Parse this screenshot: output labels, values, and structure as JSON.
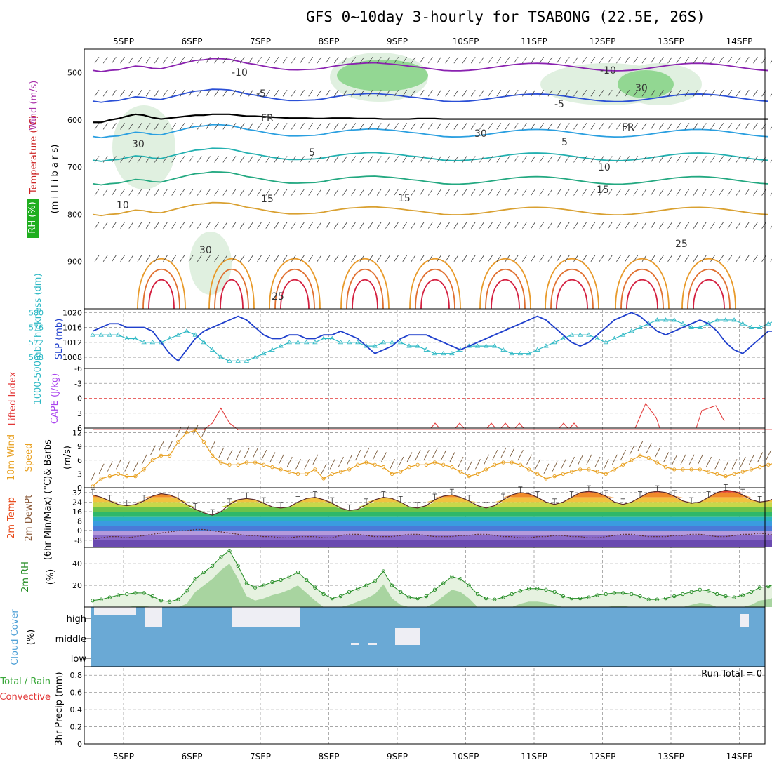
{
  "title": "GFS 0~10day 3-hourly for TSABONG (22.5E, 26S)",
  "chart_data": {
    "type": "multi-panel meteogram",
    "dates": [
      "5SEP",
      "6SEP",
      "7SEP",
      "8SEP",
      "9SEP",
      "10SEP",
      "11SEP",
      "12SEP",
      "13SEP",
      "14SEP"
    ],
    "steps_per_day": 8,
    "grid": true,
    "panels": [
      {
        "id": "upper-air",
        "type": "contour",
        "ylabels": [
          "Wind (m/s)",
          "Temperature (°C)",
          "RH (%)",
          "(m i l l i b a r s)"
        ],
        "yticks": [
          500,
          600,
          700,
          800,
          900
        ],
        "ylim": [
          1000,
          450
        ],
        "contour_labels": [
          "-10",
          "-10",
          "-5",
          "-5",
          "FR",
          "FR",
          "5",
          "5",
          "10",
          "10",
          "15",
          "15",
          "15",
          "25",
          "25",
          "30",
          "30",
          "30",
          "30"
        ],
        "freezing_level_mb": [
          605,
          605,
          600,
          597,
          592,
          588,
          590,
          595,
          598,
          596,
          594,
          592,
          590,
          590,
          588,
          588,
          588,
          590,
          592,
          592,
          593,
          594,
          595,
          596,
          596,
          596,
          597,
          597,
          596,
          596,
          596,
          597,
          597,
          597,
          598,
          598,
          598,
          598,
          597,
          597,
          597,
          598,
          598,
          598,
          598,
          598,
          598,
          598,
          598,
          598,
          598,
          598,
          598,
          598,
          598,
          598,
          598,
          598,
          598,
          598,
          598,
          598,
          598,
          598,
          598,
          598,
          598,
          598,
          598,
          598,
          598,
          598,
          598,
          598,
          598,
          598,
          598,
          598,
          598,
          598
        ]
      },
      {
        "id": "slp-thickness",
        "type": "line",
        "ylabels": [
          "SLP (mb)",
          "1000-500mb Thickness (dm)"
        ],
        "yticks_left": [
          568,
          572,
          576,
          580
        ],
        "yticks_right": [
          1008,
          1012,
          1016,
          1020
        ],
        "ylim_right": [
          1005,
          1021
        ],
        "series": [
          {
            "name": "SLP (mb)",
            "axis": "right",
            "values": [
              1015,
              1016,
              1017,
              1017,
              1016,
              1016,
              1016,
              1015,
              1012,
              1009,
              1007,
              1010,
              1013,
              1015,
              1016,
              1017,
              1018,
              1019,
              1018,
              1016,
              1014,
              1013,
              1013,
              1014,
              1014,
              1013,
              1013,
              1014,
              1014,
              1015,
              1014,
              1013,
              1011,
              1009,
              1010,
              1011,
              1013,
              1014,
              1014,
              1014,
              1013,
              1012,
              1011,
              1010,
              1011,
              1012,
              1013,
              1014,
              1015,
              1016,
              1017,
              1018,
              1019,
              1018,
              1016,
              1014,
              1012,
              1011,
              1012,
              1014,
              1016,
              1018,
              1019,
              1020,
              1019,
              1017,
              1015,
              1014,
              1015,
              1016,
              1017,
              1018,
              1017,
              1015,
              1012,
              1010,
              1009,
              1011,
              1013,
              1015,
              1015,
              1014,
              1013,
              1013,
              1015,
              1016,
              1016,
              1015,
              1013,
              1011,
              1010,
              1012,
              1014,
              1016,
              1016,
              1017
            ]
          },
          {
            "name": "1000-500mb Thickness (dm)",
            "axis": "right",
            "values": [
              1014,
              1014,
              1014,
              1014,
              1013,
              1013,
              1012,
              1012,
              1012,
              1013,
              1014,
              1015,
              1014,
              1012,
              1010,
              1008,
              1007,
              1007,
              1007,
              1008,
              1009,
              1010,
              1011,
              1012,
              1012,
              1012,
              1012,
              1013,
              1013,
              1012,
              1012,
              1012,
              1011,
              1011,
              1012,
              1012,
              1012,
              1011,
              1011,
              1010,
              1009,
              1009,
              1009,
              1010,
              1011,
              1011,
              1011,
              1011,
              1010,
              1009,
              1009,
              1009,
              1010,
              1011,
              1012,
              1013,
              1014,
              1014,
              1014,
              1013,
              1012,
              1013,
              1014,
              1015,
              1016,
              1017,
              1018,
              1018,
              1018,
              1017,
              1016,
              1016,
              1017,
              1018,
              1018,
              1018,
              1017,
              1016,
              1016,
              1017,
              1018,
              1018,
              1017,
              1016,
              1015,
              1015,
              1016,
              1017,
              1017,
              1016,
              1015,
              1015,
              1016,
              1016,
              1015,
              1015
            ]
          }
        ]
      },
      {
        "id": "cape-li",
        "type": "line",
        "ylabels": [
          "Lifted Index",
          "CAPE (J/kg)"
        ],
        "yticks": [
          6,
          3,
          0,
          -3,
          -6
        ],
        "ylim": [
          6,
          -6
        ],
        "series": [
          {
            "name": "Lifted Index",
            "values": [
              7,
              7,
              7,
              7,
              7,
              7,
              7,
              7,
              7,
              7,
              7,
              7,
              7,
              7,
              5,
              2,
              5,
              7,
              7,
              7,
              7,
              7,
              7,
              7,
              7,
              7,
              7,
              7,
              7,
              7,
              7,
              7,
              7,
              7,
              7,
              7,
              7,
              7,
              7,
              7,
              7,
              7,
              7,
              7,
              7,
              7,
              7,
              7,
              7,
              7,
              7,
              7,
              7,
              7,
              7,
              7,
              7,
              7,
              7,
              7,
              7,
              7,
              7,
              7,
              7,
              7,
              7,
              7,
              7,
              7,
              7,
              7,
              7,
              7,
              7,
              7,
              7,
              7,
              7,
              7,
              7,
              7,
              7,
              7,
              7,
              7,
              7,
              7,
              7,
              7,
              7,
              7,
              7,
              7,
              7,
              7
            ]
          }
        ]
      },
      {
        "id": "wind10m",
        "type": "line",
        "ylabels": [
          "10m Wind",
          "Speed",
          "& Barbs",
          "(m/s)"
        ],
        "yticks": [
          0,
          3,
          6,
          9,
          12
        ],
        "ylim": [
          0,
          13
        ],
        "series": [
          {
            "name": "10m Wind Speed (m/s)",
            "values": [
              0.3,
              2,
              2.5,
              3,
              2.5,
              2.5,
              4,
              6,
              7,
              7,
              10,
              12,
              12.5,
              10,
              7,
              5.5,
              5,
              5,
              5.5,
              5.5,
              5,
              4.5,
              4,
              3.5,
              3,
              3,
              4,
              2,
              3,
              3.5,
              4,
              5,
              5.5,
              5,
              4.5,
              3,
              3.5,
              4.5,
              5,
              5,
              5.5,
              5,
              4.5,
              3.5,
              2.5,
              3,
              4,
              5,
              5.5,
              5.5,
              5,
              4,
              3,
              2,
              2.5,
              3,
              3.5,
              4,
              4,
              3.5,
              3,
              4,
              5,
              6,
              7,
              6.5,
              5.5,
              4.5,
              4,
              4,
              4,
              4,
              3.5,
              3,
              2.5,
              3,
              3.5,
              4,
              4.5,
              5,
              5.5,
              5,
              4,
              3,
              2.5,
              2,
              4,
              6,
              6.5,
              6,
              6,
              7,
              8,
              9,
              9.5,
              9.5
            ]
          }
        ]
      },
      {
        "id": "temperature",
        "type": "area",
        "ylabels": [
          "2m Temp",
          "2m DewPt",
          "(6hr Min/Max) (°C)"
        ],
        "yticks": [
          32,
          24,
          16,
          8,
          0,
          -8
        ],
        "ylim": [
          -14,
          36
        ],
        "series": [
          {
            "name": "2m Temp (°C)",
            "values": [
              30,
              28,
              25,
              22,
              21,
              22,
              25,
              29,
              31,
              30,
              27,
              22,
              18,
              15,
              13,
              16,
              22,
              26,
              27,
              26,
              23,
              20,
              19,
              20,
              24,
              27,
              28,
              26,
              23,
              19,
              17,
              18,
              22,
              26,
              28,
              27,
              24,
              20,
              19,
              21,
              26,
              29,
              30,
              28,
              25,
              21,
              19,
              21,
              26,
              30,
              32,
              31,
              28,
              24,
              22,
              24,
              28,
              32,
              33,
              32,
              29,
              24,
              22,
              24,
              28,
              32,
              33,
              32,
              29,
              25,
              23,
              24,
              28,
              32,
              34,
              33,
              30,
              26,
              24,
              25,
              28,
              32,
              34,
              33,
              30,
              26,
              24,
              24,
              25,
              24,
              23,
              22,
              22,
              22,
              23,
              23
            ]
          },
          {
            "name": "2m DewPt (°C)",
            "values": [
              -7,
              -6,
              -5,
              -5,
              -6,
              -5,
              -4,
              -3,
              -2,
              -1,
              0,
              0,
              1,
              1,
              0,
              -1,
              -2,
              -3,
              -4,
              -4,
              -5,
              -5,
              -6,
              -6,
              -5,
              -5,
              -5,
              -6,
              -6,
              -4,
              -3,
              -3,
              -4,
              -5,
              -5,
              -5,
              -4,
              -3,
              -3,
              -4,
              -5,
              -5,
              -5,
              -4,
              -4,
              -3,
              -3,
              -4,
              -5,
              -5,
              -6,
              -6,
              -5,
              -5,
              -4,
              -4,
              -5,
              -5,
              -6,
              -6,
              -5,
              -4,
              -3,
              -3,
              -4,
              -5,
              -5,
              -5,
              -4,
              -4,
              -3,
              -3,
              -4,
              -5,
              -5,
              -4,
              -3,
              -3,
              -2,
              -3,
              -4,
              -4,
              -3,
              -3,
              -2,
              -2,
              -3,
              -3,
              -2,
              -2,
              -1,
              -1,
              0,
              0,
              0,
              0
            ]
          }
        ]
      },
      {
        "id": "rh",
        "type": "area",
        "ylabels": [
          "2m RH",
          "(%)"
        ],
        "yticks": [
          20,
          40
        ],
        "ylim": [
          0,
          55
        ],
        "series": [
          {
            "name": "2m RH (%)",
            "values": [
              6,
              7,
              9,
              11,
              12,
              13,
              13,
              10,
              6,
              5,
              7,
              15,
              26,
              32,
              38,
              46,
              52,
              38,
              22,
              18,
              20,
              23,
              25,
              28,
              32,
              25,
              18,
              12,
              8,
              10,
              14,
              17,
              20,
              24,
              33,
              20,
              14,
              9,
              8,
              10,
              16,
              22,
              28,
              26,
              20,
              12,
              8,
              7,
              9,
              12,
              15,
              17,
              17,
              16,
              14,
              10,
              8,
              8,
              9,
              11,
              12,
              13,
              13,
              12,
              10,
              7,
              7,
              8,
              10,
              12,
              14,
              16,
              15,
              12,
              10,
              9,
              11,
              14,
              18,
              19,
              22,
              17,
              12,
              8,
              9,
              12,
              15,
              18,
              20,
              19,
              18,
              20,
              22,
              20,
              21,
              21
            ]
          }
        ]
      },
      {
        "id": "cloud",
        "type": "area",
        "ylabels": [
          "Cloud Cover",
          "(%)"
        ],
        "levels": [
          "high",
          "middle",
          "low"
        ]
      },
      {
        "id": "precip",
        "type": "bar",
        "ylabels": [
          "Total / Rain",
          "Convective",
          "3hr Precip (mm)"
        ],
        "yticks": [
          0,
          0.2,
          0.4,
          0.6,
          0.8
        ],
        "ylim": [
          0,
          0.9
        ],
        "annotation": "Run Total = 0",
        "series": [
          {
            "name": "Total / Rain",
            "values": []
          },
          {
            "name": "Convective",
            "values": []
          }
        ]
      }
    ]
  },
  "colors": {
    "ylabel": [
      "#aa33aa",
      "#cc2222",
      "#000000",
      "#000000"
    ],
    "slp_line": "#1f3fcc",
    "thickness_line": "#2cb8c4",
    "lifted_index": "#e23636",
    "cape": "#aa44ee",
    "wind_line": "#e8a020",
    "temp_max": "#e84a1a",
    "rh_line": "#228b22",
    "cloud_bg": "#6aa9d5",
    "cloud_cells": "#eeeef4"
  }
}
